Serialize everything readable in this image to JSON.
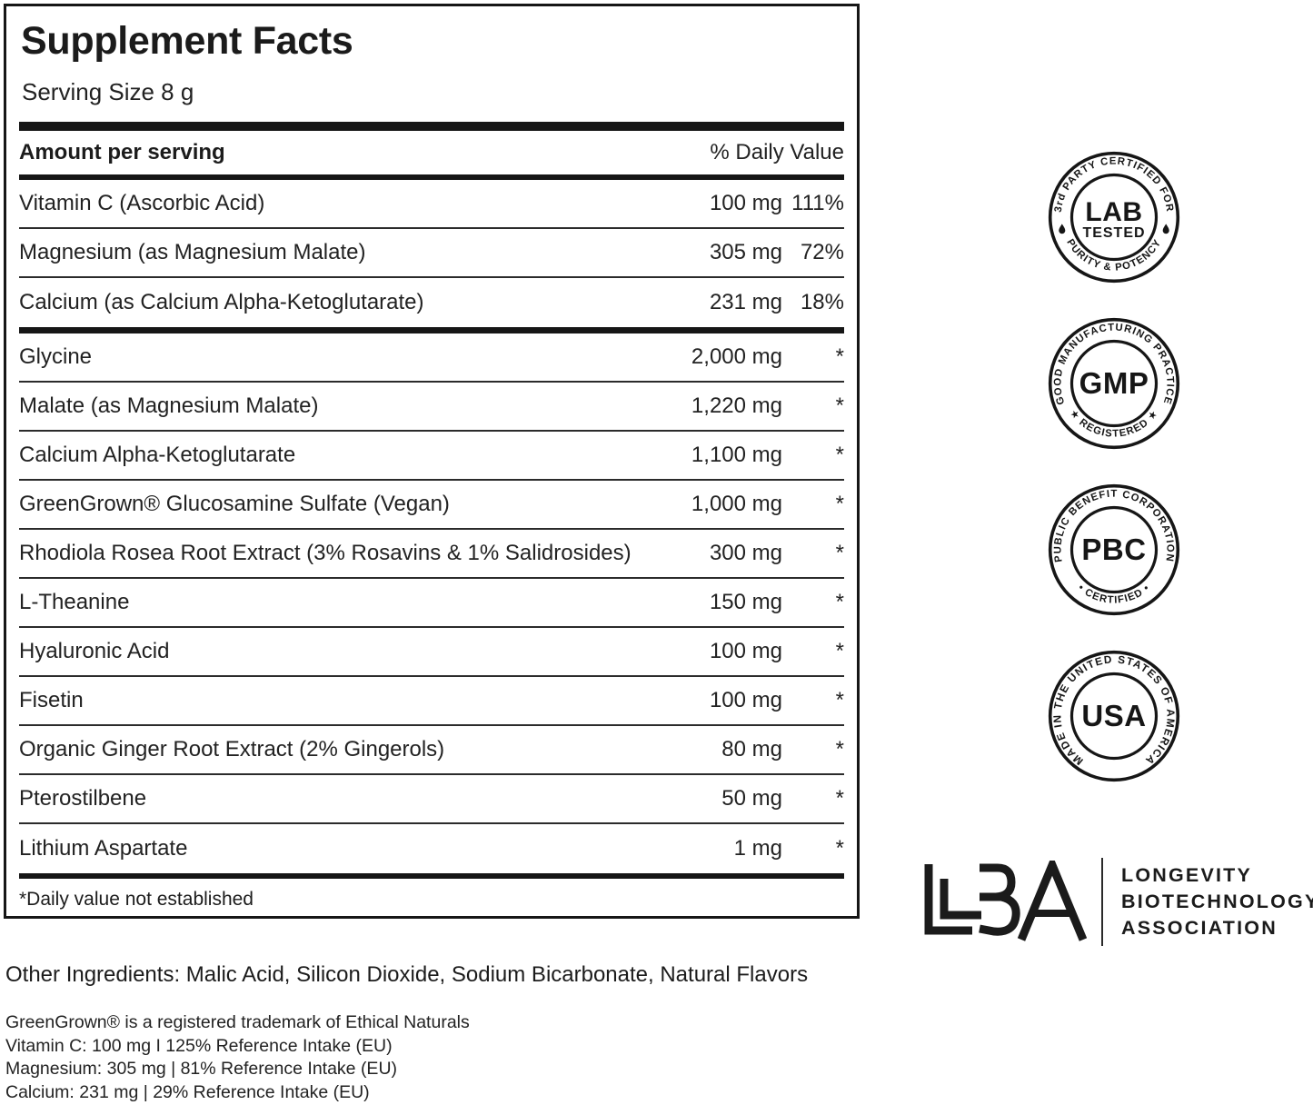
{
  "panel": {
    "title": "Supplement Facts",
    "serving_size": "Serving Size 8 g",
    "amount_header": "Amount per serving",
    "dv_header": "% Daily Value",
    "footnote": "*Daily value not established",
    "sections": [
      {
        "rows": [
          {
            "name": "Vitamin C (Ascorbic Acid)",
            "amount": "100 mg",
            "dv": "111%"
          },
          {
            "name": "Magnesium (as Magnesium Malate)",
            "amount": "305 mg",
            "dv": "72%"
          },
          {
            "name": "Calcium (as Calcium Alpha-Ketoglutarate)",
            "amount": "231 mg",
            "dv": "18%"
          }
        ]
      },
      {
        "rows": [
          {
            "name": "Glycine",
            "amount": "2,000 mg",
            "dv": "*"
          },
          {
            "name": "Malate (as Magnesium Malate)",
            "amount": "1,220 mg",
            "dv": "*"
          },
          {
            "name": "Calcium Alpha-Ketoglutarate",
            "amount": "1,100 mg",
            "dv": "*"
          },
          {
            "name": "GreenGrown® Glucosamine Sulfate (Vegan)",
            "amount": "1,000 mg",
            "dv": "*"
          },
          {
            "name": "Rhodiola Rosea Root Extract (3% Rosavins & 1% Salidrosides)",
            "amount": "300 mg",
            "dv": "*"
          },
          {
            "name": "L-Theanine",
            "amount": "150 mg",
            "dv": "*"
          },
          {
            "name": "Hyaluronic Acid",
            "amount": "100 mg",
            "dv": "*"
          },
          {
            "name": "Fisetin",
            "amount": "100 mg",
            "dv": "*"
          },
          {
            "name": "Organic Ginger Root Extract (2% Gingerols)",
            "amount": "80 mg",
            "dv": "*"
          },
          {
            "name": "Pterostilbene",
            "amount": "50 mg",
            "dv": "*"
          },
          {
            "name": "Lithium Aspartate",
            "amount": "1 mg",
            "dv": "*"
          }
        ]
      }
    ]
  },
  "badges": [
    {
      "name": "lab-tested-badge",
      "top_text": "3rd PARTY CERTIFIED FOR",
      "center_line1": "LAB",
      "center_line2": "TESTED",
      "bottom_text": "PURITY & POTENCY",
      "side_symbol": "droplet"
    },
    {
      "name": "gmp-badge",
      "top_text": "GOOD MANUFACTURING PRACTICE",
      "center_line1": "GMP",
      "bottom_text": "★ REGISTERED ★"
    },
    {
      "name": "pbc-badge",
      "top_text": "PUBLIC BENEFIT CORPORATION",
      "center_line1": "PBC",
      "bottom_text": "• CERTIFIED •"
    },
    {
      "name": "usa-badge",
      "wrap_text": "MADE IN THE UNITED STATES OF AMERICA",
      "center_line1": "USA"
    }
  ],
  "lba": {
    "monogram": "LBA",
    "lines": [
      "LONGEVITY",
      "BIOTECHNOLOGY",
      "ASSOCIATION"
    ]
  },
  "footer": {
    "other_ingredients": "Other Ingredients: Malic Acid, Silicon Dioxide, Sodium Bicarbonate, Natural Flavors",
    "fine_print": [
      "GreenGrown® is a registered trademark of Ethical Naturals",
      "Vitamin C: 100 mg I 125% Reference Intake (EU)",
      "Magnesium: 305 mg | 81% Reference Intake (EU)",
      "Calcium: 231 mg | 29% Reference Intake (EU)"
    ]
  },
  "colors": {
    "ink": "#161616",
    "background": "#ffffff"
  }
}
